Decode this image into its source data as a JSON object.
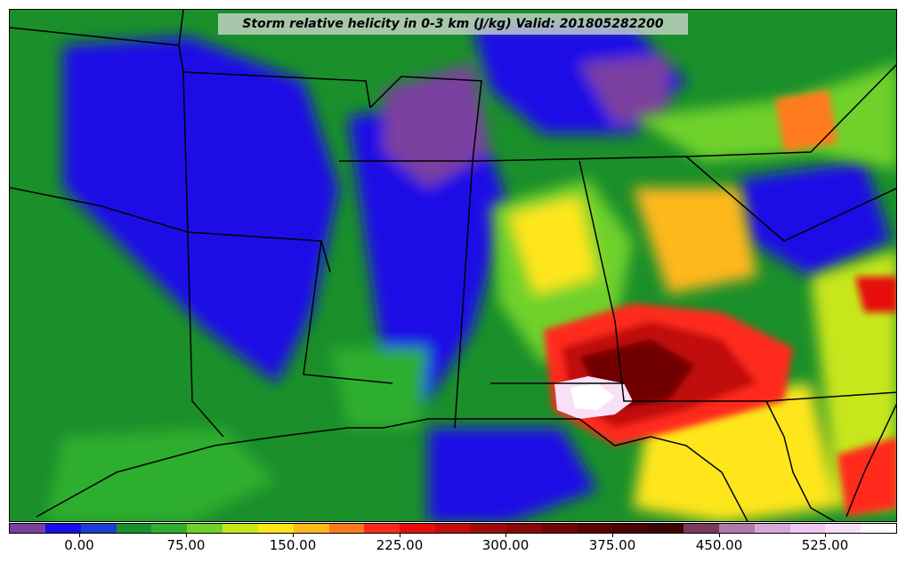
{
  "title": "Storm relative helicity in 0-3 km (J/kg) Valid: 201805282200",
  "colorbar": {
    "colors": [
      "#7b3fa0",
      "#1a0ee6",
      "#1a3fd0",
      "#1a8f2a",
      "#2fae2f",
      "#6fd12a",
      "#c8e61a",
      "#ffe61a",
      "#ffb81a",
      "#ff7a1a",
      "#ff2a1a",
      "#e60d0d",
      "#c20d0d",
      "#a00a0a",
      "#8a0808",
      "#700606",
      "#5a0404",
      "#480404",
      "#3a0303",
      "#7a3a5a",
      "#b07aa8",
      "#d8a8d8",
      "#f0c8f0",
      "#f8e0f8",
      "#ffffff"
    ],
    "tick_labels": [
      "0.00",
      "75.00",
      "150.00",
      "225.00",
      "300.00",
      "375.00",
      "450.00",
      "525.00"
    ]
  }
}
